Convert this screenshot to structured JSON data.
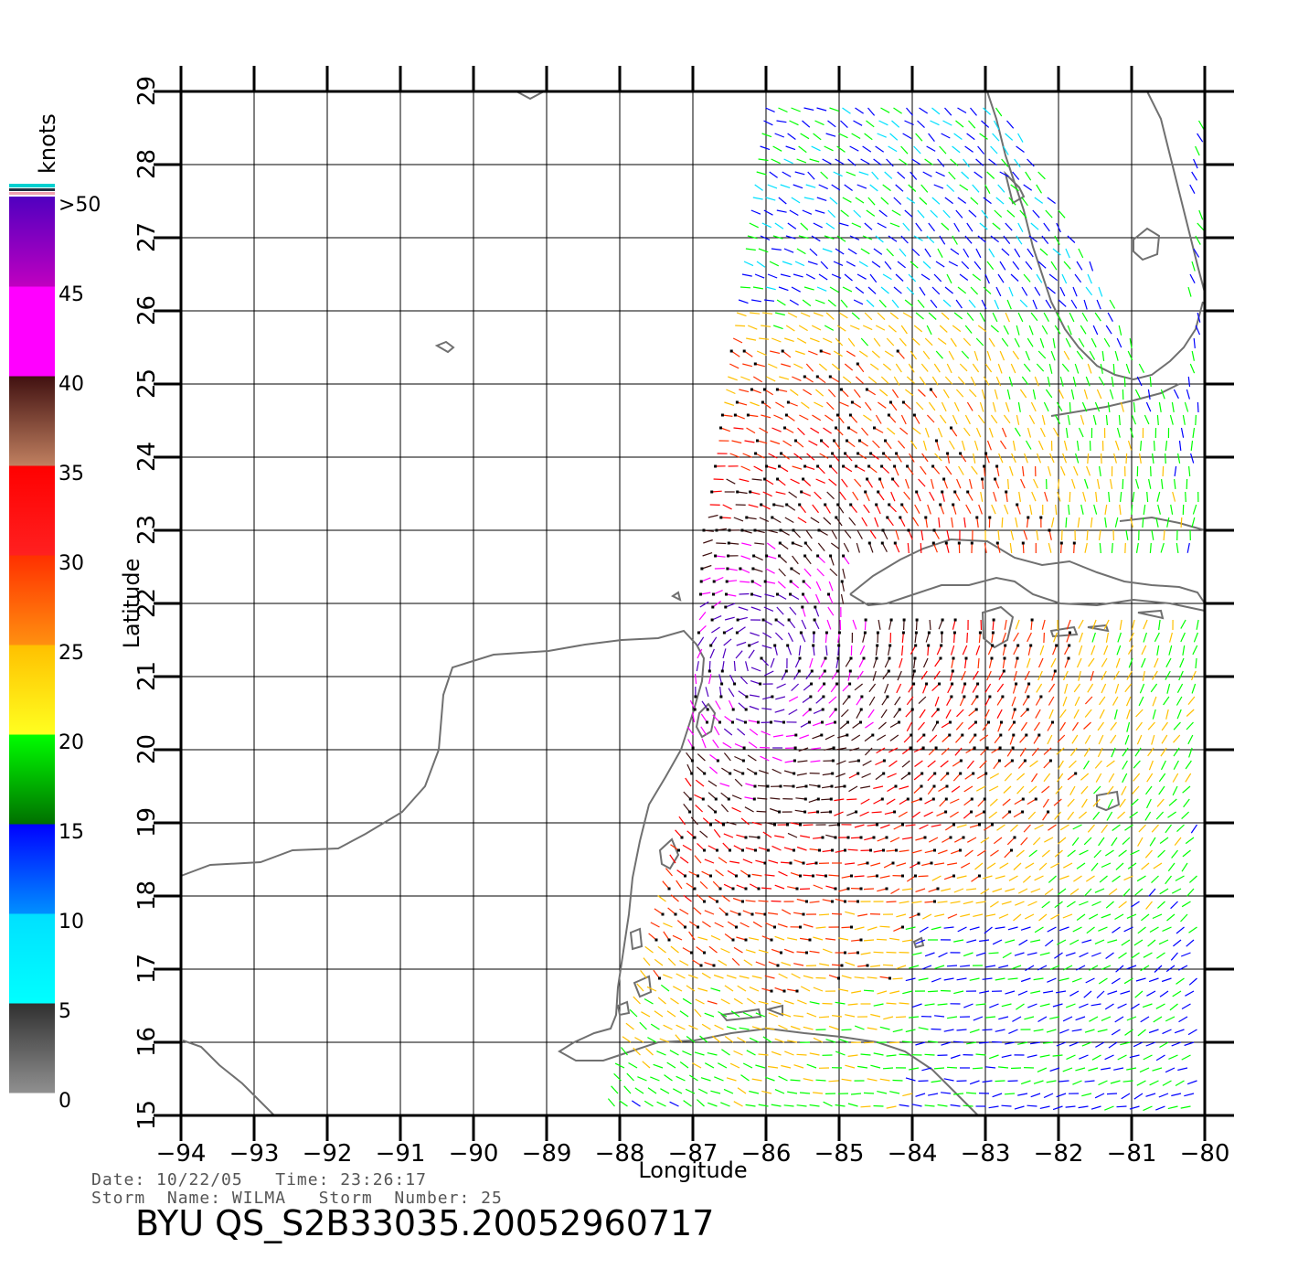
{
  "legend": {
    "unit": "knots",
    "ticks": [
      ">50",
      "45",
      "40",
      "35",
      "30",
      "25",
      "20",
      "15",
      "10",
      "5",
      "0"
    ],
    "bands": [
      {
        "from": 0,
        "to": 5,
        "top": "#303030",
        "bottom": "#909090"
      },
      {
        "from": 5,
        "to": 10,
        "top": "#00e0ff",
        "bottom": "#00ffff"
      },
      {
        "from": 10,
        "to": 15,
        "top": "#0000ff",
        "bottom": "#0090ff"
      },
      {
        "from": 15,
        "to": 20,
        "top": "#00ff00",
        "bottom": "#007000"
      },
      {
        "from": 20,
        "to": 25,
        "top": "#ffc000",
        "bottom": "#ffff20"
      },
      {
        "from": 25,
        "to": 30,
        "top": "#ff3000",
        "bottom": "#ff9010"
      },
      {
        "from": 30,
        "to": 35,
        "top": "#ff0000",
        "bottom": "#ff2020"
      },
      {
        "from": 35,
        "to": 40,
        "top": "#401010",
        "bottom": "#c08060"
      },
      {
        "from": 40,
        "to": 45,
        "top": "#ff00ff",
        "bottom": "#ff00ff"
      },
      {
        "from": 45,
        "to": 50,
        "top": "#5000c0",
        "bottom": "#c000c0"
      }
    ]
  },
  "map": {
    "lon_range": [
      -94,
      -80
    ],
    "lat_range": [
      15,
      29
    ],
    "x_ticks": [
      "-94",
      "-93",
      "-92",
      "-91",
      "-90",
      "-89",
      "-88",
      "-87",
      "-86",
      "-85",
      "-84",
      "-83",
      "-82",
      "-81",
      "-80"
    ],
    "y_ticks": [
      "15",
      "16",
      "17",
      "18",
      "19",
      "20",
      "21",
      "22",
      "23",
      "24",
      "25",
      "26",
      "27",
      "28",
      "29"
    ],
    "x_label": "Longitude",
    "y_label": "Latitude",
    "land_color": "#707070",
    "storm_center": {
      "lon": -86.1,
      "lat": 21.2
    }
  },
  "footer": {
    "line1": "Date: 10/22/05   Time: 23:26:17",
    "line2": "Storm  Name: WILMA   Storm  Number: 25",
    "id": "BYU  QS_S2B33035.20052960717"
  }
}
